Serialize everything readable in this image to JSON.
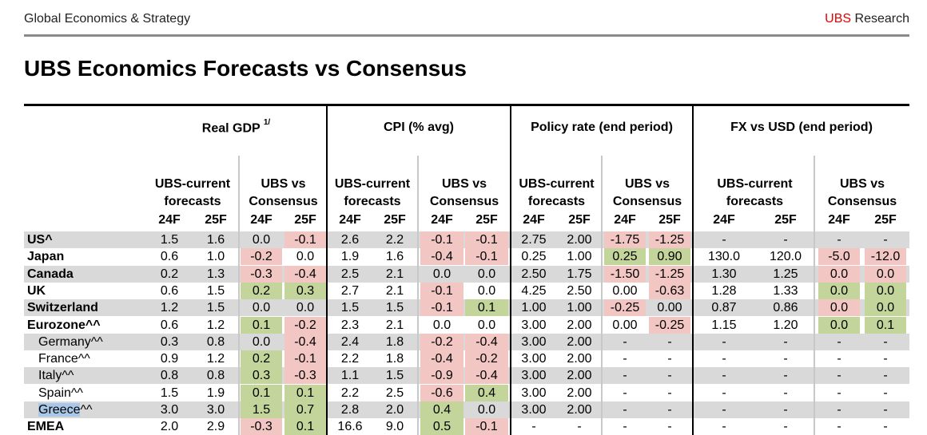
{
  "header": {
    "left": "Global Economics & Strategy",
    "brand": "UBS",
    "right_suffix": " Research"
  },
  "title": "UBS Economics Forecasts vs Consensus",
  "groups": [
    {
      "label": "Real GDP",
      "sup": "1/"
    },
    {
      "label": "CPI (% avg)",
      "sup": ""
    },
    {
      "label": "Policy rate (end period)",
      "sup": ""
    },
    {
      "label": "FX vs USD (end period)",
      "sup": ""
    }
  ],
  "subheaders": {
    "ubs_l1": "UBS-current",
    "ubs_l2": "forecasts",
    "cons_l1": "UBS vs",
    "cons_l2": "Consensus"
  },
  "years": [
    "24F",
    "25F"
  ],
  "colors": {
    "positive": "#c3d59a",
    "negative": "#f2c6c2",
    "shade": "#d9d9d9",
    "brand": "#e60000"
  },
  "rows": [
    {
      "label": "US^",
      "bold": true,
      "sub": false,
      "shaded": true,
      "v": [
        "1.5",
        "1.6",
        "0.0",
        "-0.1",
        "2.6",
        "2.2",
        "-0.1",
        "-0.1",
        "2.75",
        "2.00",
        "-1.75",
        "-1.25",
        "-",
        "-",
        "-",
        "-"
      ],
      "c": [
        "",
        "",
        "",
        "neg",
        "",
        "",
        "neg",
        "neg",
        "",
        "",
        "neg",
        "neg",
        "",
        "",
        "",
        ""
      ]
    },
    {
      "label": "Japan",
      "bold": true,
      "sub": false,
      "shaded": false,
      "v": [
        "0.6",
        "1.0",
        "-0.2",
        "0.0",
        "1.9",
        "1.6",
        "-0.4",
        "-0.1",
        "0.25",
        "1.00",
        "0.25",
        "0.90",
        "130.0",
        "120.0",
        "-5.0",
        "-12.0"
      ],
      "c": [
        "",
        "",
        "neg",
        "",
        "",
        "",
        "neg",
        "neg",
        "",
        "",
        "pos",
        "pos",
        "",
        "",
        "neg",
        "neg"
      ]
    },
    {
      "label": "Canada",
      "bold": true,
      "sub": false,
      "shaded": true,
      "v": [
        "0.2",
        "1.3",
        "-0.3",
        "-0.4",
        "2.5",
        "2.1",
        "0.0",
        "0.0",
        "2.50",
        "1.75",
        "-1.50",
        "-1.25",
        "1.30",
        "1.25",
        "0.0",
        "0.0"
      ],
      "c": [
        "",
        "",
        "neg",
        "neg",
        "",
        "",
        "",
        "",
        "",
        "",
        "neg",
        "neg",
        "",
        "",
        "neg",
        "neg"
      ]
    },
    {
      "label": "UK",
      "bold": true,
      "sub": false,
      "shaded": false,
      "v": [
        "0.6",
        "1.5",
        "0.2",
        "0.3",
        "2.7",
        "2.1",
        "-0.1",
        "0.0",
        "4.25",
        "2.50",
        "0.00",
        "-0.63",
        "1.28",
        "1.33",
        "0.0",
        "0.0"
      ],
      "c": [
        "",
        "",
        "pos",
        "pos",
        "",
        "",
        "neg",
        "",
        "",
        "",
        "",
        "neg",
        "",
        "",
        "pos",
        "pos"
      ]
    },
    {
      "label": "Switzerland",
      "bold": true,
      "sub": false,
      "shaded": true,
      "v": [
        "1.2",
        "1.5",
        "0.0",
        "0.0",
        "1.5",
        "1.5",
        "-0.1",
        "0.1",
        "1.00",
        "1.00",
        "-0.25",
        "0.00",
        "0.87",
        "0.86",
        "0.0",
        "0.0"
      ],
      "c": [
        "",
        "",
        "",
        "",
        "",
        "",
        "neg",
        "pos",
        "",
        "",
        "neg",
        "",
        "",
        "",
        "neg",
        "pos"
      ]
    },
    {
      "label": "Eurozone^^",
      "bold": true,
      "sub": false,
      "shaded": false,
      "v": [
        "0.6",
        "1.2",
        "0.1",
        "-0.2",
        "2.3",
        "2.1",
        "0.0",
        "0.0",
        "3.00",
        "2.00",
        "0.00",
        "-0.25",
        "1.15",
        "1.20",
        "0.0",
        "0.1"
      ],
      "c": [
        "",
        "",
        "pos",
        "neg",
        "",
        "",
        "",
        "",
        "",
        "",
        "",
        "neg",
        "",
        "",
        "pos",
        "pos"
      ]
    },
    {
      "label": "Germany^^",
      "bold": false,
      "sub": true,
      "shaded": true,
      "v": [
        "0.3",
        "0.8",
        "0.0",
        "-0.4",
        "2.4",
        "1.8",
        "-0.2",
        "-0.4",
        "3.00",
        "2.00",
        "-",
        "-",
        "-",
        "-",
        "-",
        "-"
      ],
      "c": [
        "",
        "",
        "",
        "neg",
        "",
        "",
        "neg",
        "neg",
        "",
        "",
        "",
        "",
        "",
        "",
        "",
        ""
      ]
    },
    {
      "label": "France^^",
      "bold": false,
      "sub": true,
      "shaded": false,
      "v": [
        "0.9",
        "1.2",
        "0.2",
        "-0.1",
        "2.2",
        "1.8",
        "-0.4",
        "-0.2",
        "3.00",
        "2.00",
        "-",
        "-",
        "-",
        "-",
        "-",
        "-"
      ],
      "c": [
        "",
        "",
        "pos",
        "neg",
        "",
        "",
        "neg",
        "neg",
        "",
        "",
        "",
        "",
        "",
        "",
        "",
        ""
      ]
    },
    {
      "label": "Italy^^",
      "bold": false,
      "sub": true,
      "shaded": true,
      "v": [
        "0.8",
        "0.8",
        "0.3",
        "-0.3",
        "1.1",
        "1.5",
        "-0.9",
        "-0.4",
        "3.00",
        "2.00",
        "-",
        "-",
        "-",
        "-",
        "-",
        "-"
      ],
      "c": [
        "",
        "",
        "pos",
        "neg",
        "",
        "",
        "neg",
        "neg",
        "",
        "",
        "",
        "",
        "",
        "",
        "",
        ""
      ]
    },
    {
      "label": "Spain^^",
      "bold": false,
      "sub": true,
      "shaded": false,
      "v": [
        "1.5",
        "1.9",
        "0.1",
        "0.1",
        "2.2",
        "2.5",
        "-0.6",
        "0.4",
        "3.00",
        "2.00",
        "-",
        "-",
        "-",
        "-",
        "-",
        "-"
      ],
      "c": [
        "",
        "",
        "pos",
        "pos",
        "",
        "",
        "neg",
        "pos",
        "",
        "",
        "",
        "",
        "",
        "",
        "",
        ""
      ]
    },
    {
      "label": "Greece^^",
      "bold": false,
      "sub": true,
      "shaded": true,
      "hl": "Greece",
      "v": [
        "3.0",
        "3.0",
        "1.5",
        "0.7",
        "2.8",
        "2.0",
        "0.4",
        "0.0",
        "3.00",
        "2.00",
        "-",
        "-",
        "-",
        "-",
        "-",
        "-"
      ],
      "c": [
        "",
        "",
        "pos",
        "pos",
        "",
        "",
        "pos",
        "",
        "",
        "",
        "",
        "",
        "",
        "",
        "",
        ""
      ]
    },
    {
      "label": "EMEA",
      "bold": true,
      "sub": false,
      "shaded": false,
      "v": [
        "2.0",
        "2.9",
        "-0.3",
        "0.1",
        "16.6",
        "9.0",
        "0.5",
        "-0.1",
        "-",
        "-",
        "-",
        "-",
        "-",
        "-",
        "-",
        "-"
      ],
      "c": [
        "",
        "",
        "neg",
        "pos",
        "",
        "",
        "pos",
        "neg",
        "",
        "",
        "",
        "",
        "",
        "",
        "",
        ""
      ]
    }
  ]
}
